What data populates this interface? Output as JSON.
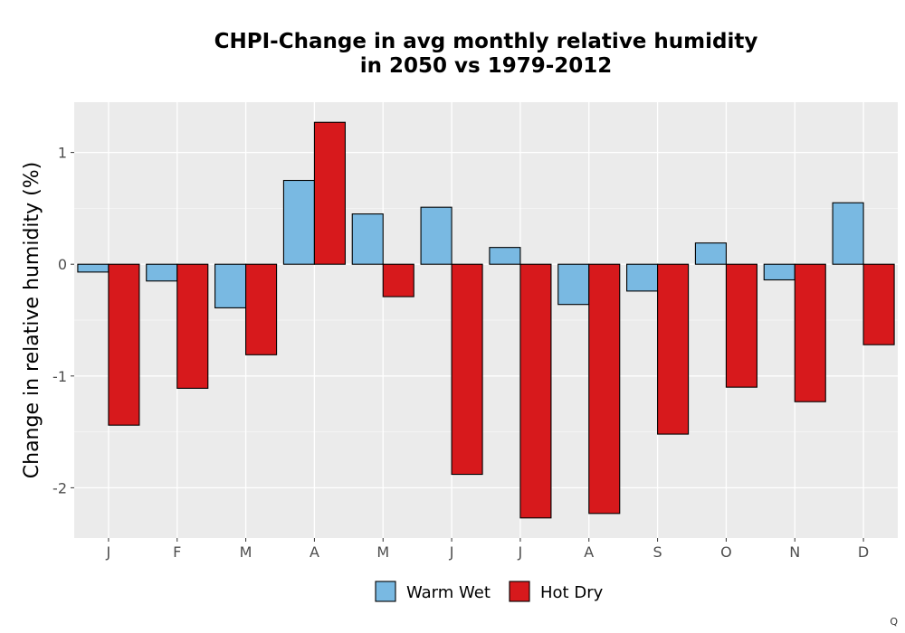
{
  "chart_data": {
    "type": "bar",
    "title": "CHPI-Change in avg monthly relative humidity\nin 2050 vs 1979-2012",
    "xlabel": "",
    "ylabel": "Change in relative humidity (%)",
    "categories": [
      "J",
      "F",
      "M",
      "A",
      "M",
      "J",
      "J",
      "A",
      "S",
      "O",
      "N",
      "D"
    ],
    "series": [
      {
        "name": "Warm Wet",
        "color": "#79b9e2",
        "values": [
          -0.07,
          -0.15,
          -0.39,
          0.75,
          0.45,
          0.51,
          0.15,
          -0.36,
          -0.24,
          0.19,
          -0.14,
          0.55
        ]
      },
      {
        "name": "Hot Dry",
        "color": "#d7191c",
        "values": [
          -1.44,
          -1.11,
          -0.81,
          1.27,
          -0.29,
          -1.88,
          -2.27,
          -2.23,
          -1.52,
          -1.1,
          -1.23,
          -0.72
        ]
      }
    ],
    "yticks": [
      1,
      0,
      -1,
      -2
    ],
    "ytick_labels": [
      "1",
      "0",
      "-1",
      "-2"
    ],
    "ylim": [
      -2.45,
      1.45
    ],
    "grid": true,
    "legend_position": "bottom",
    "panel_background": "#ebebeb"
  },
  "footer_mark": "Q"
}
